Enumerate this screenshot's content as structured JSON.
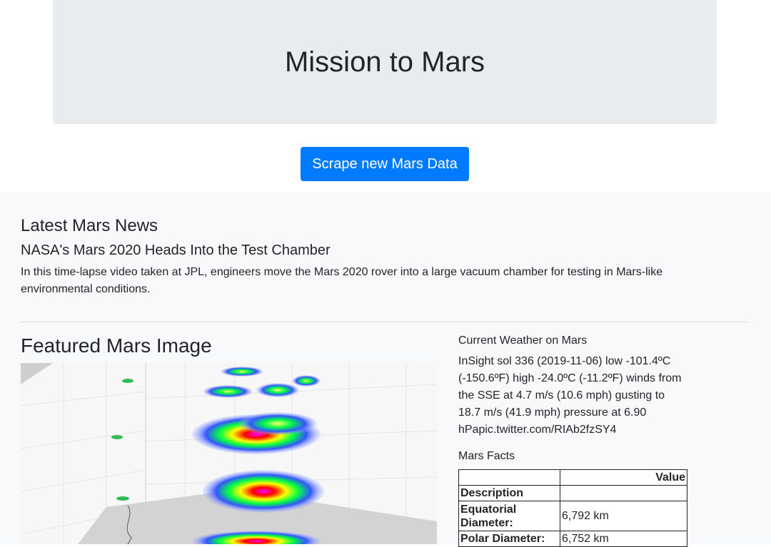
{
  "header": {
    "title": "Mission to Mars"
  },
  "actions": {
    "scrape_label": "Scrape new Mars Data"
  },
  "news": {
    "heading": "Latest Mars News",
    "title": "NASA's Mars 2020 Heads Into the Test Chamber",
    "paragraph": "In this time-lapse video taken at JPL, engineers move the Mars 2020 rover into a large vacuum chamber for testing in Mars-like environmental conditions."
  },
  "featured": {
    "heading": "Featured Mars Image"
  },
  "weather": {
    "heading": "Current Weather on Mars",
    "text": "InSight sol 336 (2019-11-06) low -101.4ºC (-150.6ºF) high -24.0ºC (-11.2ºF) winds from the SSE at 4.7 m/s (10.6 mph) gusting to 18.7 m/s (41.9 mph) pressure at 6.90 hPapic.twitter.com/RIAb2fzSY4"
  },
  "facts": {
    "heading": "Mars Facts",
    "header_blank": "",
    "header_value": "Value",
    "index_label": "Description",
    "rows": [
      {
        "label": "Equatorial Diameter:",
        "value": "6,792 km"
      },
      {
        "label": "Polar Diameter:",
        "value": "6,752 km"
      }
    ]
  },
  "colors": {
    "primary": "#007bff",
    "jumbotron": "#e9ecef",
    "content_bg": "#f8f9fa"
  }
}
